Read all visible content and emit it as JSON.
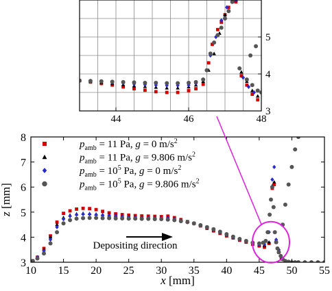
{
  "chart_data": [
    {
      "type": "scatter",
      "role": "main",
      "xlabel": "x [mm]",
      "ylabel": "z [mm]",
      "xlim": [
        10,
        55
      ],
      "ylim": [
        3,
        8
      ],
      "xticks": [
        "10",
        "15",
        "20",
        "25",
        "30",
        "35",
        "40",
        "45",
        "50",
        "55"
      ],
      "yticks": [
        "3",
        "4",
        "5",
        "6",
        "7",
        "8"
      ],
      "grid": false,
      "legend_position": "top-left",
      "annotation": "Depositing direction",
      "series": [
        {
          "name": "p_amb = 11 Pa, g = 0 m/s^2",
          "legend": {
            "p": "p",
            "sub": "amb",
            "rest": " = 11 Pa, ",
            "g": "g",
            "tail": " = 0 m/s",
            "sup": "2"
          },
          "color": "#d40000",
          "marker": "square",
          "x": [
            10.3,
            11.0,
            12.0,
            13.0,
            14.0,
            15.0,
            16.0,
            17.0,
            18.0,
            19.0,
            20.0,
            21.0,
            22.0,
            23.0,
            24.0,
            25.0,
            26.0,
            27.0,
            28.0,
            29.0,
            30.0,
            31.0,
            32.0,
            33.0,
            34.0,
            35.0,
            36.0,
            37.0,
            38.0,
            39.0,
            40.0,
            41.0,
            42.0,
            43.0,
            44.0,
            45.0,
            45.8,
            46.5,
            47.0,
            47.3,
            47.6,
            48.0,
            48.4
          ],
          "y": [
            3.05,
            3.2,
            3.55,
            4.05,
            4.6,
            4.95,
            5.05,
            5.12,
            5.15,
            5.14,
            5.1,
            5.03,
            4.97,
            4.93,
            4.9,
            4.88,
            4.86,
            4.85,
            4.84,
            4.83,
            4.82,
            4.84,
            4.78,
            4.7,
            4.62,
            4.55,
            4.45,
            4.35,
            4.25,
            4.15,
            4.05,
            3.97,
            3.88,
            3.8,
            3.72,
            3.65,
            3.6,
            3.75,
            5.95,
            6.1,
            3.8,
            3.4,
            3.15
          ]
        },
        {
          "name": "p_amb = 11 Pa, g = 9.806 m/s^2",
          "legend": {
            "p": "p",
            "sub": "amb",
            "rest": " = 11 Pa, ",
            "g": "g",
            "tail": " = 9.806 m/s",
            "sup": "2"
          },
          "color": "#000000",
          "marker": "triangle",
          "x": [
            10.3,
            11.0,
            12.0,
            13.0,
            14.0,
            15.0,
            16.0,
            17.0,
            18.0,
            19.0,
            20.0,
            21.0,
            22.0,
            23.0,
            24.0,
            25.0,
            26.0,
            27.0,
            28.0,
            29.0,
            30.0,
            31.0,
            32.0,
            33.0,
            34.0,
            35.0,
            36.0,
            37.0,
            38.0,
            39.0,
            40.0,
            41.0,
            42.0,
            43.0,
            44.0,
            45.0,
            45.8,
            46.5,
            47.0,
            47.3,
            47.6,
            48.0,
            48.4
          ],
          "y": [
            3.05,
            3.2,
            3.5,
            4.0,
            4.5,
            4.78,
            4.88,
            4.93,
            4.95,
            4.94,
            4.92,
            4.9,
            4.88,
            4.86,
            4.84,
            4.82,
            4.8,
            4.79,
            4.78,
            4.77,
            4.76,
            4.78,
            4.74,
            4.68,
            4.62,
            4.56,
            4.48,
            4.4,
            4.3,
            4.2,
            4.1,
            4.0,
            3.92,
            3.84,
            3.76,
            3.7,
            3.68,
            3.8,
            6.05,
            6.2,
            3.85,
            3.45,
            3.15
          ]
        },
        {
          "name": "p_amb = 10^5 Pa, g = 0 m/s^2",
          "legend": {
            "p": "p",
            "sub": "amb",
            "rest": " = 10",
            "exp": "5",
            "rest2": " Pa, ",
            "g": "g",
            "tail": " = 0 m/s",
            "sup": "2"
          },
          "color": "#2a2ad0",
          "marker": "diamond",
          "x": [
            10.3,
            11.0,
            12.0,
            13.0,
            14.0,
            15.0,
            16.0,
            17.0,
            18.0,
            19.0,
            20.0,
            21.0,
            22.0,
            23.0,
            24.0,
            25.0,
            26.0,
            27.0,
            28.0,
            29.0,
            30.0,
            31.0,
            32.0,
            33.0,
            34.0,
            35.0,
            36.0,
            37.0,
            38.0,
            39.0,
            40.0,
            41.0,
            42.0,
            43.0,
            44.0,
            45.0,
            45.8,
            46.5,
            47.0,
            47.3,
            47.6,
            48.0,
            48.4
          ],
          "y": [
            3.05,
            3.2,
            3.45,
            3.9,
            4.4,
            4.72,
            4.84,
            4.9,
            4.92,
            4.92,
            4.9,
            4.88,
            4.86,
            4.84,
            4.82,
            4.8,
            4.79,
            4.78,
            4.77,
            4.76,
            4.75,
            4.76,
            4.72,
            4.66,
            4.6,
            4.54,
            4.46,
            4.38,
            4.28,
            4.18,
            4.08,
            3.98,
            3.9,
            3.82,
            3.75,
            3.7,
            3.72,
            4.2,
            6.3,
            6.8,
            3.9,
            3.5,
            3.2
          ]
        },
        {
          "name": "p_amb = 10^5 Pa, g = 9.806 m/s^2",
          "legend": {
            "p": "p",
            "sub": "amb",
            "rest": " = 10",
            "exp": "5",
            "rest2": " Pa, ",
            "g": "g",
            "tail": " = 9.806 m/s",
            "sup": "2"
          },
          "color": "#555555",
          "marker": "circle",
          "x": [
            10.3,
            11.0,
            12.0,
            13.0,
            14.0,
            15.0,
            16.0,
            17.0,
            18.0,
            19.0,
            20.0,
            21.0,
            22.0,
            23.0,
            24.0,
            25.0,
            26.0,
            27.0,
            28.0,
            29.0,
            30.0,
            31.0,
            32.0,
            33.0,
            34.0,
            35.0,
            36.0,
            37.0,
            38.0,
            39.0,
            40.0,
            41.0,
            42.0,
            43.0,
            44.0,
            45.0,
            45.6,
            46.0,
            46.3,
            46.6,
            46.8,
            47.0,
            47.2,
            47.4,
            47.6,
            47.8,
            48.0,
            48.3,
            48.6,
            49.0,
            49.5,
            50.0,
            50.5,
            51.0,
            52.0,
            53.0,
            54.0,
            55.0,
            48.6,
            49.0,
            49.5,
            50.0,
            50.5,
            51.0
          ],
          "y": [
            3.05,
            3.15,
            3.35,
            3.75,
            4.2,
            4.55,
            4.68,
            4.74,
            4.76,
            4.77,
            4.77,
            4.76,
            4.76,
            4.75,
            4.75,
            4.74,
            4.74,
            4.73,
            4.73,
            4.72,
            4.72,
            4.7,
            4.68,
            4.64,
            4.6,
            4.55,
            4.48,
            4.4,
            4.32,
            4.22,
            4.12,
            4.02,
            3.93,
            3.85,
            3.78,
            3.75,
            3.78,
            3.85,
            4.2,
            4.9,
            5.5,
            6.0,
            5.2,
            4.2,
            3.8,
            3.55,
            3.4,
            3.25,
            3.12,
            3.05,
            3.02,
            3.0,
            3.0,
            3.0,
            3.0,
            3.0,
            3.0,
            3.0,
            4.5,
            5.3,
            6.1,
            6.8,
            7.5,
            8.0
          ]
        }
      ]
    },
    {
      "type": "scatter",
      "role": "inset",
      "xlim": [
        43,
        48
      ],
      "ylim": [
        3,
        6
      ],
      "xticks": [
        "44",
        "46",
        "48"
      ],
      "yticks": [
        "3",
        "4",
        "5"
      ],
      "grid": true,
      "series": [
        {
          "name": "p_amb = 11 Pa, g = 0 m/s^2",
          "color": "#d40000",
          "marker": "square",
          "x": [
            43.0,
            43.3,
            43.6,
            43.9,
            44.2,
            44.5,
            44.8,
            45.1,
            45.4,
            45.7,
            46.0,
            46.2,
            46.4,
            46.55,
            46.65,
            46.8,
            46.9,
            47.0,
            47.1,
            47.3,
            47.45,
            47.6,
            47.75,
            47.9
          ],
          "y": [
            3.82,
            3.78,
            3.74,
            3.7,
            3.65,
            3.6,
            3.56,
            3.52,
            3.5,
            3.5,
            3.55,
            3.6,
            3.72,
            4.3,
            4.8,
            5.2,
            5.4,
            5.6,
            5.8,
            5.95,
            3.95,
            3.7,
            3.45,
            3.3
          ]
        },
        {
          "name": "p_amb = 11 Pa, g = 9.806 m/s^2",
          "color": "#000000",
          "marker": "triangle",
          "x": [
            43.0,
            43.3,
            43.6,
            43.9,
            44.2,
            44.5,
            44.8,
            45.1,
            45.4,
            45.7,
            46.0,
            46.2,
            46.4,
            46.55,
            46.7,
            46.85,
            47.0,
            47.3,
            47.45,
            47.6,
            47.75,
            47.9
          ],
          "y": [
            3.82,
            3.8,
            3.77,
            3.74,
            3.71,
            3.68,
            3.66,
            3.64,
            3.62,
            3.62,
            3.65,
            3.7,
            3.8,
            4.1,
            4.55,
            5.1,
            5.6,
            6.0,
            4.05,
            3.8,
            3.55,
            3.4
          ]
        },
        {
          "name": "p_amb = 10^5 Pa, g = 0 m/s^2",
          "color": "#2a2ad0",
          "marker": "diamond",
          "x": [
            43.0,
            43.3,
            43.6,
            43.9,
            44.2,
            44.5,
            44.8,
            45.1,
            45.4,
            45.7,
            46.0,
            46.2,
            46.4,
            46.6,
            46.75,
            46.9,
            47.05,
            47.3,
            47.5,
            47.65,
            47.8
          ],
          "y": [
            3.82,
            3.81,
            3.79,
            3.77,
            3.75,
            3.73,
            3.71,
            3.7,
            3.69,
            3.69,
            3.7,
            3.74,
            3.85,
            4.5,
            5.0,
            5.45,
            5.8,
            6.0,
            3.9,
            3.65,
            3.5
          ]
        },
        {
          "name": "p_amb = 10^5 Pa, g = 9.806 m/s^2",
          "color": "#555555",
          "marker": "circle",
          "x": [
            43.0,
            43.3,
            43.6,
            43.9,
            44.2,
            44.5,
            44.8,
            45.1,
            45.4,
            45.7,
            46.0,
            46.2,
            46.4,
            46.5,
            46.6,
            46.7,
            46.8,
            46.9,
            47.0,
            47.1,
            47.2,
            47.4,
            47.6,
            47.75,
            47.9,
            48.0,
            47.7,
            47.85
          ],
          "y": [
            3.82,
            3.81,
            3.8,
            3.79,
            3.78,
            3.77,
            3.76,
            3.76,
            3.75,
            3.75,
            3.76,
            3.78,
            3.85,
            4.1,
            4.55,
            4.85,
            5.05,
            5.25,
            5.5,
            5.7,
            5.95,
            4.15,
            3.85,
            3.7,
            3.55,
            3.5,
            4.5,
            4.75
          ]
        }
      ]
    }
  ]
}
